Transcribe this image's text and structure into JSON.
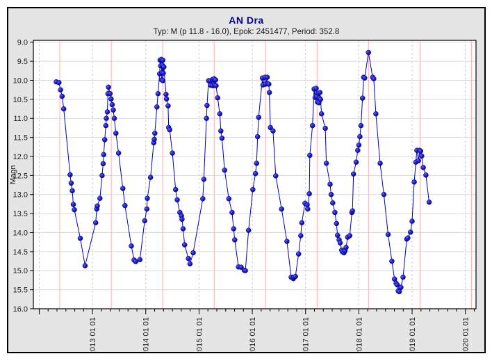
{
  "window": {
    "background": "#ffffff",
    "panel_background": "#e5e5e5",
    "panel_border_color": "#000000"
  },
  "header": {
    "title": "AN Dra",
    "subtitle": "Typ: M (p 11.8 - 16.0), Epok: 2451477, Period: 352.8",
    "title_color": "#000099",
    "subtitle_color": "#1a1a1a"
  },
  "chart_data": {
    "type": "scatter",
    "title": "AN Dra",
    "subtitle": "Typ: M (p 11.8 - 16.0), Epok: 2451477, Period: 352.8",
    "xlabel": "",
    "ylabel": "Magn",
    "y_inverted": true,
    "xlim": [
      2011.89,
      2020.2
    ],
    "ylim": [
      8.95,
      16.0
    ],
    "y_tick_min": 9.0,
    "y_tick_max": 16.0,
    "y_tick_step": 0.5,
    "x_minor_tick_step_years": 0.1666667,
    "x_major_tick_years": [
      2012,
      2013,
      2014,
      2015,
      2016,
      2017,
      2018,
      2019,
      2020
    ],
    "x_labeled_years": [
      2013,
      2014,
      2015,
      2016,
      2017,
      2018,
      2019,
      2020
    ],
    "x_tick_labels": [
      "2013 01 01",
      "2014 01 01",
      "2015 01 01",
      "2016 01 01",
      "2017 01 01",
      "2018 01 01",
      "2019 01 01",
      "2020 01 01"
    ],
    "maxima_lines_years": [
      2012.387,
      2013.353,
      2014.319,
      2015.285,
      2016.251,
      2017.217,
      2018.183,
      2019.149,
      2020.115
    ],
    "grid": {
      "h_line_color": "#d9d9d9",
      "year_line_color": "#cccccc",
      "year_line_dash": "3 3",
      "maxima_line_color": "#ffbbbb",
      "plot_background": "#ffffff",
      "frame_color": "#000000",
      "tick_color": "#000000",
      "tick_label_color": "#1a1a1a"
    },
    "series": [
      {
        "name": "AN Dra magnitude estimates",
        "marker": "filled-circle",
        "line_color": "#0000bb",
        "marker_fill_light": "#6666ff",
        "marker_fill_mid": "#2222cc",
        "marker_fill_dark": "#000080",
        "points": [
          [
            2012.32,
            10.04
          ],
          [
            2012.37,
            10.06
          ],
          [
            2012.4,
            10.25
          ],
          [
            2012.43,
            10.42
          ],
          [
            2012.46,
            10.75
          ],
          [
            2012.58,
            12.48
          ],
          [
            2012.6,
            12.7
          ],
          [
            2012.62,
            12.9
          ],
          [
            2012.64,
            13.26
          ],
          [
            2012.66,
            13.4
          ],
          [
            2012.77,
            14.15
          ],
          [
            2012.86,
            14.87
          ],
          [
            2013.06,
            13.74
          ],
          [
            2013.08,
            13.38
          ],
          [
            2013.09,
            13.3
          ],
          [
            2013.14,
            13.1
          ],
          [
            2013.18,
            12.5
          ],
          [
            2013.2,
            12.19
          ],
          [
            2013.21,
            11.95
          ],
          [
            2013.23,
            11.56
          ],
          [
            2013.25,
            11.19
          ],
          [
            2013.26,
            11.0
          ],
          [
            2013.28,
            10.83
          ],
          [
            2013.29,
            10.35
          ],
          [
            2013.3,
            10.18
          ],
          [
            2013.33,
            10.35
          ],
          [
            2013.35,
            10.49
          ],
          [
            2013.37,
            10.64
          ],
          [
            2013.39,
            10.78
          ],
          [
            2013.41,
            11.0
          ],
          [
            2013.44,
            11.39
          ],
          [
            2013.49,
            11.91
          ],
          [
            2013.57,
            12.84
          ],
          [
            2013.61,
            13.29
          ],
          [
            2013.73,
            14.35
          ],
          [
            2013.78,
            14.72
          ],
          [
            2013.81,
            14.76
          ],
          [
            2013.89,
            14.71
          ],
          [
            2013.98,
            13.69
          ],
          [
            2014.02,
            13.38
          ],
          [
            2014.03,
            13.1
          ],
          [
            2014.09,
            12.55
          ],
          [
            2014.15,
            11.64
          ],
          [
            2014.16,
            11.55
          ],
          [
            2014.17,
            11.39
          ],
          [
            2014.21,
            10.7
          ],
          [
            2014.23,
            10.35
          ],
          [
            2014.26,
            9.83
          ],
          [
            2014.27,
            9.47
          ],
          [
            2014.28,
            9.62
          ],
          [
            2014.29,
            9.45
          ],
          [
            2014.3,
            9.8
          ],
          [
            2014.3,
            9.99
          ],
          [
            2014.31,
            9.6
          ],
          [
            2014.32,
            9.47
          ],
          [
            2014.32,
            10.01
          ],
          [
            2014.33,
            9.81
          ],
          [
            2014.34,
            9.65
          ],
          [
            2014.38,
            10.37
          ],
          [
            2014.39,
            10.49
          ],
          [
            2014.42,
            10.67
          ],
          [
            2014.43,
            11.24
          ],
          [
            2014.45,
            11.3
          ],
          [
            2014.5,
            11.91
          ],
          [
            2014.56,
            12.87
          ],
          [
            2014.59,
            13.14
          ],
          [
            2014.64,
            13.47
          ],
          [
            2014.67,
            13.56
          ],
          [
            2014.68,
            13.65
          ],
          [
            2014.7,
            13.9
          ],
          [
            2014.73,
            14.32
          ],
          [
            2014.8,
            14.68
          ],
          [
            2014.83,
            14.82
          ],
          [
            2014.89,
            14.53
          ],
          [
            2015.07,
            13.11
          ],
          [
            2015.09,
            12.6
          ],
          [
            2015.14,
            11.0
          ],
          [
            2015.15,
            10.66
          ],
          [
            2015.18,
            10.01
          ],
          [
            2015.21,
            10.01
          ],
          [
            2015.22,
            10.13
          ],
          [
            2015.25,
            9.98
          ],
          [
            2015.26,
            10.14
          ],
          [
            2015.28,
            9.96
          ],
          [
            2015.29,
            10.13
          ],
          [
            2015.31,
            9.99
          ],
          [
            2015.32,
            10.14
          ],
          [
            2015.35,
            10.46
          ],
          [
            2015.39,
            10.88
          ],
          [
            2015.41,
            11.33
          ],
          [
            2015.43,
            11.52
          ],
          [
            2015.48,
            12.36
          ],
          [
            2015.56,
            13.11
          ],
          [
            2015.62,
            13.47
          ],
          [
            2015.65,
            13.9
          ],
          [
            2015.67,
            14.19
          ],
          [
            2015.74,
            14.9
          ],
          [
            2015.79,
            14.91
          ],
          [
            2015.85,
            14.99
          ],
          [
            2015.87,
            15.0
          ],
          [
            2015.93,
            13.94
          ],
          [
            2016.01,
            12.87
          ],
          [
            2016.06,
            12.45
          ],
          [
            2016.08,
            12.18
          ],
          [
            2016.1,
            11.48
          ],
          [
            2016.12,
            10.97
          ],
          [
            2016.19,
            9.94
          ],
          [
            2016.2,
            10.12
          ],
          [
            2016.24,
            9.92
          ],
          [
            2016.25,
            10.1
          ],
          [
            2016.28,
            9.92
          ],
          [
            2016.29,
            10.09
          ],
          [
            2016.31,
            10.1
          ],
          [
            2016.32,
            10.32
          ],
          [
            2016.34,
            11.24
          ],
          [
            2016.39,
            11.33
          ],
          [
            2016.44,
            12.51
          ],
          [
            2016.55,
            13.38
          ],
          [
            2016.65,
            14.23
          ],
          [
            2016.73,
            15.17
          ],
          [
            2016.77,
            15.21
          ],
          [
            2016.78,
            15.17
          ],
          [
            2016.81,
            15.15
          ],
          [
            2016.87,
            14.56
          ],
          [
            2016.91,
            14.08
          ],
          [
            2016.93,
            13.74
          ],
          [
            2016.99,
            13.23
          ],
          [
            2017.03,
            13.27
          ],
          [
            2017.04,
            13.38
          ],
          [
            2017.07,
            12.98
          ],
          [
            2017.08,
            11.97
          ],
          [
            2017.13,
            11.19
          ],
          [
            2017.16,
            10.23
          ],
          [
            2017.18,
            10.45
          ],
          [
            2017.2,
            10.21
          ],
          [
            2017.21,
            10.43
          ],
          [
            2017.22,
            10.57
          ],
          [
            2017.24,
            10.34
          ],
          [
            2017.25,
            10.59
          ],
          [
            2017.26,
            10.47
          ],
          [
            2017.27,
            10.32
          ],
          [
            2017.28,
            10.5
          ],
          [
            2017.3,
            10.88
          ],
          [
            2017.37,
            11.26
          ],
          [
            2017.39,
            12.18
          ],
          [
            2017.46,
            12.73
          ],
          [
            2017.48,
            13.0
          ],
          [
            2017.51,
            13.22
          ],
          [
            2017.55,
            13.47
          ],
          [
            2017.58,
            13.76
          ],
          [
            2017.6,
            14.07
          ],
          [
            2017.63,
            14.19
          ],
          [
            2017.65,
            14.27
          ],
          [
            2017.68,
            14.46
          ],
          [
            2017.69,
            14.5
          ],
          [
            2017.72,
            14.53
          ],
          [
            2017.74,
            14.48
          ],
          [
            2017.76,
            14.39
          ],
          [
            2017.79,
            14.12
          ],
          [
            2017.83,
            14.08
          ],
          [
            2017.87,
            13.47
          ],
          [
            2017.88,
            13.43
          ],
          [
            2017.9,
            12.46
          ],
          [
            2017.95,
            12.15
          ],
          [
            2017.98,
            11.84
          ],
          [
            2018.0,
            11.7
          ],
          [
            2018.02,
            11.48
          ],
          [
            2018.04,
            11.19
          ],
          [
            2018.07,
            10.47
          ],
          [
            2018.09,
            9.92
          ],
          [
            2018.11,
            9.94
          ],
          [
            2018.18,
            9.27
          ],
          [
            2018.26,
            9.92
          ],
          [
            2018.28,
            9.96
          ],
          [
            2018.32,
            10.88
          ],
          [
            2018.4,
            12.18
          ],
          [
            2018.47,
            13.0
          ],
          [
            2018.55,
            14.05
          ],
          [
            2018.62,
            14.75
          ],
          [
            2018.67,
            15.22
          ],
          [
            2018.7,
            15.33
          ],
          [
            2018.72,
            15.37
          ],
          [
            2018.74,
            15.53
          ],
          [
            2018.76,
            15.55
          ],
          [
            2018.79,
            15.44
          ],
          [
            2018.83,
            15.17
          ],
          [
            2018.9,
            14.17
          ],
          [
            2018.92,
            14.14
          ],
          [
            2018.97,
            13.99
          ],
          [
            2019.0,
            13.7
          ],
          [
            2019.04,
            12.67
          ],
          [
            2019.07,
            12.15
          ],
          [
            2019.09,
            11.84
          ],
          [
            2019.12,
            12.11
          ],
          [
            2019.14,
            11.84
          ],
          [
            2019.16,
            11.86
          ],
          [
            2019.18,
            11.99
          ],
          [
            2019.21,
            12.29
          ],
          [
            2019.26,
            12.49
          ],
          [
            2019.32,
            13.2
          ]
        ]
      }
    ]
  }
}
